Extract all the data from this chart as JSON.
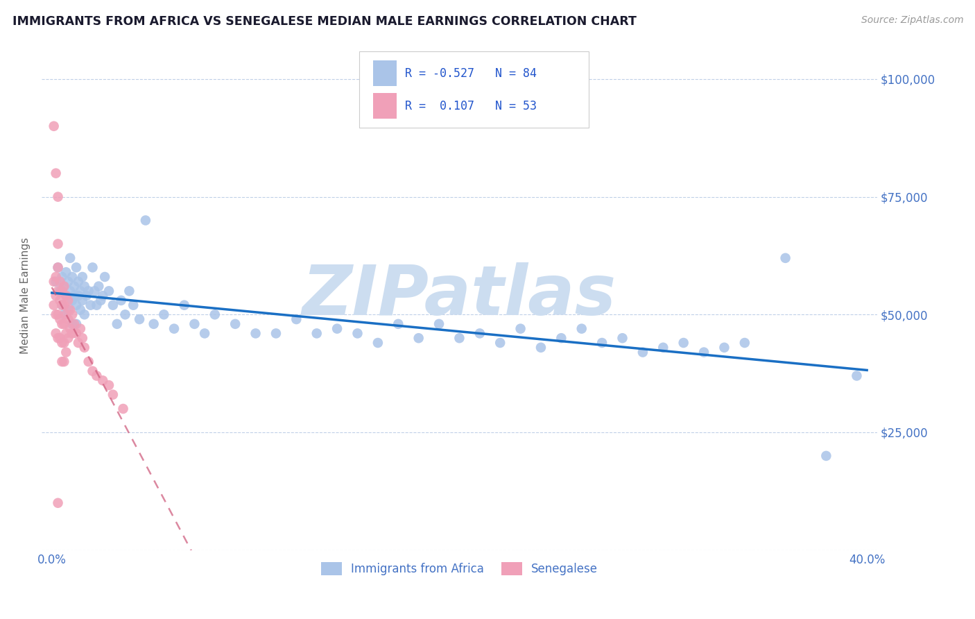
{
  "title": "IMMIGRANTS FROM AFRICA VS SENEGALESE MEDIAN MALE EARNINGS CORRELATION CHART",
  "source": "Source: ZipAtlas.com",
  "ylabel": "Median Male Earnings",
  "xlim": [
    -0.005,
    0.405
  ],
  "ylim": [
    0,
    108000
  ],
  "yticks": [
    0,
    25000,
    50000,
    75000,
    100000
  ],
  "ytick_labels": [
    "",
    "$25,000",
    "$50,000",
    "$75,000",
    "$100,000"
  ],
  "series1_name": "Immigrants from Africa",
  "series1_color": "#aac4e8",
  "series1_line_color": "#1a6fc4",
  "series1_R": -0.527,
  "series1_N": 84,
  "series2_name": "Senegalese",
  "series2_color": "#f0a0b8",
  "series2_line_color": "#d06080",
  "series2_R": 0.107,
  "series2_N": 53,
  "watermark": "ZIPatlas",
  "watermark_color": "#ccddf0",
  "axis_color": "#4472c4",
  "legend_R_color": "#2255cc",
  "blue_scatter_x": [
    0.002,
    0.003,
    0.004,
    0.005,
    0.005,
    0.006,
    0.006,
    0.007,
    0.007,
    0.008,
    0.008,
    0.009,
    0.009,
    0.01,
    0.01,
    0.01,
    0.011,
    0.011,
    0.012,
    0.012,
    0.012,
    0.013,
    0.013,
    0.014,
    0.014,
    0.015,
    0.015,
    0.016,
    0.016,
    0.017,
    0.018,
    0.019,
    0.02,
    0.021,
    0.022,
    0.023,
    0.024,
    0.025,
    0.026,
    0.028,
    0.03,
    0.032,
    0.034,
    0.036,
    0.038,
    0.04,
    0.043,
    0.046,
    0.05,
    0.055,
    0.06,
    0.065,
    0.07,
    0.075,
    0.08,
    0.09,
    0.1,
    0.11,
    0.12,
    0.13,
    0.14,
    0.15,
    0.16,
    0.17,
    0.18,
    0.19,
    0.2,
    0.21,
    0.22,
    0.23,
    0.24,
    0.25,
    0.26,
    0.27,
    0.28,
    0.29,
    0.3,
    0.31,
    0.32,
    0.33,
    0.34,
    0.36,
    0.38,
    0.395
  ],
  "blue_scatter_y": [
    57000,
    60000,
    55000,
    58000,
    52000,
    56000,
    50000,
    59000,
    54000,
    57000,
    51000,
    55000,
    62000,
    58000,
    53000,
    48000,
    56000,
    54000,
    60000,
    52000,
    48000,
    57000,
    54000,
    55000,
    51000,
    58000,
    53000,
    56000,
    50000,
    54000,
    55000,
    52000,
    60000,
    55000,
    52000,
    56000,
    53000,
    54000,
    58000,
    55000,
    52000,
    48000,
    53000,
    50000,
    55000,
    52000,
    49000,
    70000,
    48000,
    50000,
    47000,
    52000,
    48000,
    46000,
    50000,
    48000,
    46000,
    46000,
    49000,
    46000,
    47000,
    46000,
    44000,
    48000,
    45000,
    48000,
    45000,
    46000,
    44000,
    47000,
    43000,
    45000,
    47000,
    44000,
    45000,
    42000,
    43000,
    44000,
    42000,
    43000,
    44000,
    62000,
    20000,
    37000
  ],
  "pink_scatter_x": [
    0.001,
    0.001,
    0.002,
    0.002,
    0.002,
    0.002,
    0.003,
    0.003,
    0.003,
    0.003,
    0.003,
    0.003,
    0.004,
    0.004,
    0.004,
    0.004,
    0.005,
    0.005,
    0.005,
    0.005,
    0.005,
    0.006,
    0.006,
    0.006,
    0.006,
    0.006,
    0.007,
    0.007,
    0.007,
    0.007,
    0.008,
    0.008,
    0.008,
    0.009,
    0.009,
    0.01,
    0.01,
    0.011,
    0.012,
    0.013,
    0.014,
    0.015,
    0.016,
    0.018,
    0.02,
    0.022,
    0.025,
    0.028,
    0.03,
    0.035,
    0.001,
    0.002,
    0.003
  ],
  "pink_scatter_y": [
    57000,
    52000,
    58000,
    54000,
    50000,
    46000,
    75000,
    65000,
    60000,
    55000,
    50000,
    45000,
    57000,
    53000,
    49000,
    45000,
    55000,
    52000,
    48000,
    44000,
    40000,
    56000,
    52000,
    48000,
    44000,
    40000,
    54000,
    50000,
    46000,
    42000,
    53000,
    49000,
    45000,
    51000,
    47000,
    50000,
    46000,
    48000,
    46000,
    44000,
    47000,
    45000,
    43000,
    40000,
    38000,
    37000,
    36000,
    35000,
    33000,
    30000,
    90000,
    80000,
    10000
  ]
}
